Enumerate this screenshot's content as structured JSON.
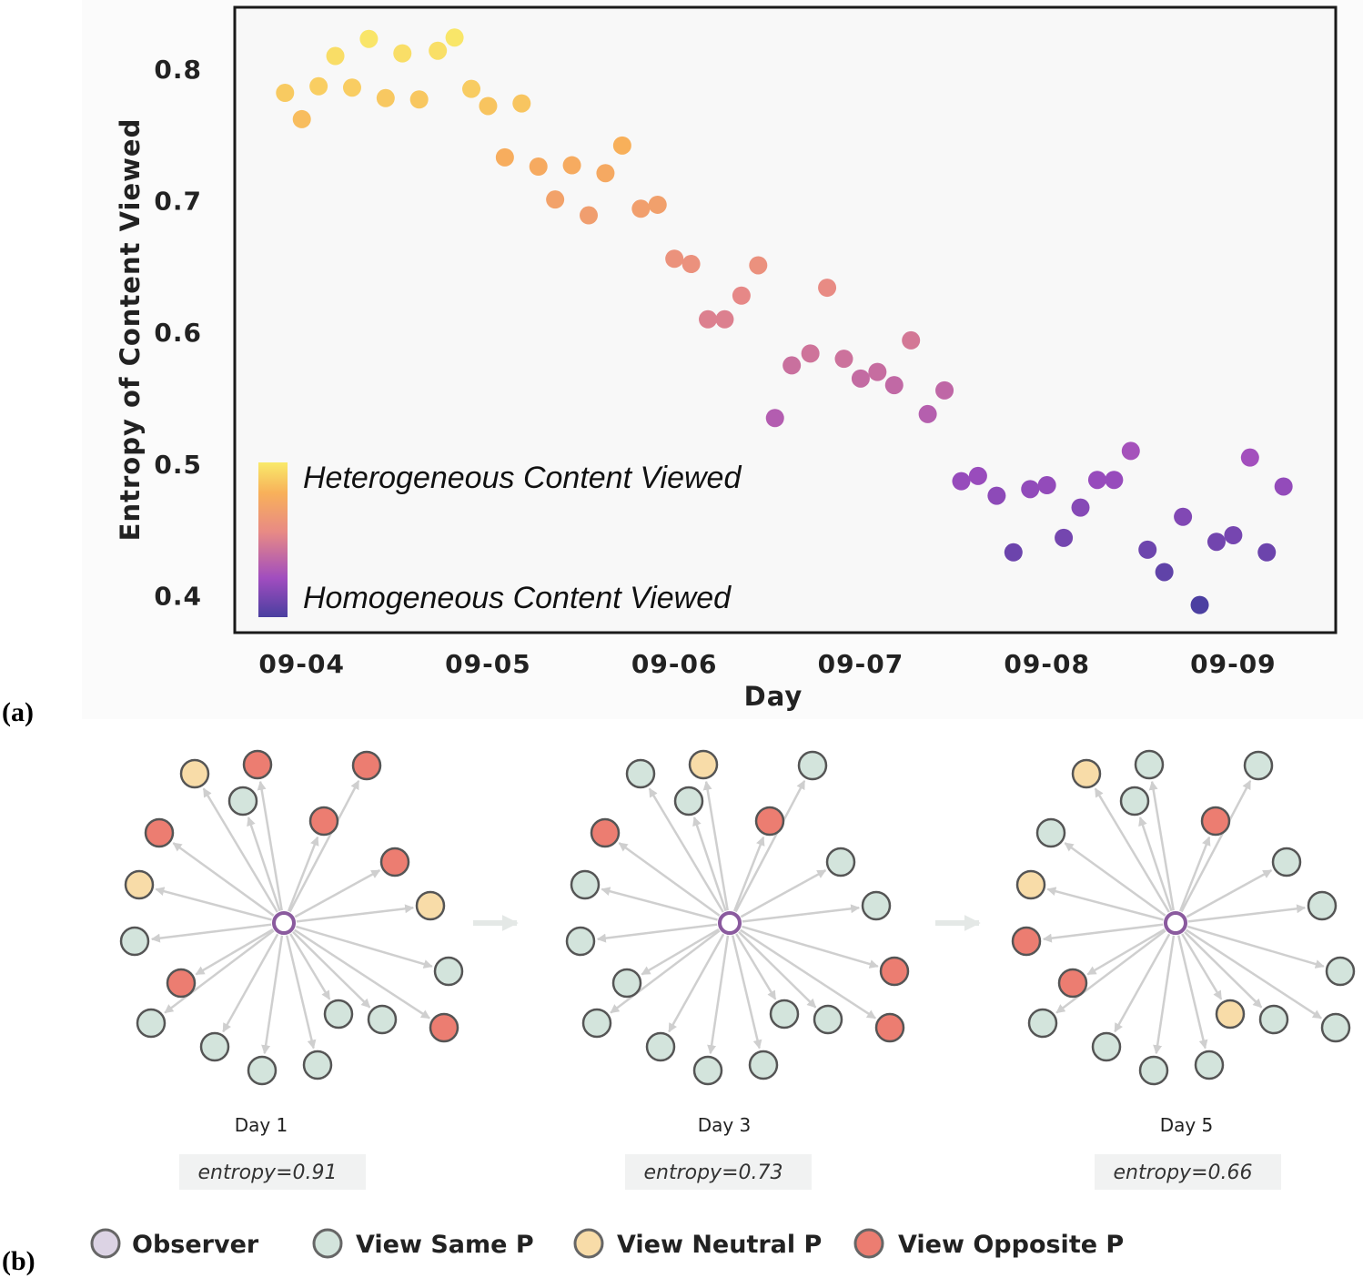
{
  "chart_data": {
    "type": "scatter",
    "title": "",
    "xlabel": "Day",
    "ylabel": "Entropy of Content Viewed",
    "x_ticks": [
      "09-04",
      "09-05",
      "09-06",
      "09-07",
      "09-08",
      "09-09"
    ],
    "xlim": [
      -0.36,
      5.55
    ],
    "ylim": [
      0.372,
      0.847
    ],
    "y_ticks": [
      0.4,
      0.5,
      0.6,
      0.7,
      0.8
    ],
    "y_tick_labels": [
      "0.4",
      "0.5",
      "0.6",
      "0.7",
      "0.8"
    ],
    "color_scale": "plasma-like (purple = low entropy, yellow = high entropy)",
    "colorbar": {
      "top_label": "Heterogeneous Content Viewed",
      "bottom_label": "Homogeneous Content Viewed",
      "placement": "lower-left"
    },
    "points": [
      {
        "x": -0.09,
        "y": 0.782
      },
      {
        "x": 0.0,
        "y": 0.762
      },
      {
        "x": 0.09,
        "y": 0.787
      },
      {
        "x": 0.18,
        "y": 0.81
      },
      {
        "x": 0.27,
        "y": 0.786
      },
      {
        "x": 0.36,
        "y": 0.823
      },
      {
        "x": 0.45,
        "y": 0.778
      },
      {
        "x": 0.54,
        "y": 0.812
      },
      {
        "x": 0.63,
        "y": 0.777
      },
      {
        "x": 0.73,
        "y": 0.814
      },
      {
        "x": 0.82,
        "y": 0.824
      },
      {
        "x": 0.91,
        "y": 0.785
      },
      {
        "x": 1.0,
        "y": 0.772
      },
      {
        "x": 1.09,
        "y": 0.733
      },
      {
        "x": 1.18,
        "y": 0.774
      },
      {
        "x": 1.27,
        "y": 0.726
      },
      {
        "x": 1.36,
        "y": 0.701
      },
      {
        "x": 1.45,
        "y": 0.727
      },
      {
        "x": 1.54,
        "y": 0.689
      },
      {
        "x": 1.63,
        "y": 0.721
      },
      {
        "x": 1.72,
        "y": 0.742
      },
      {
        "x": 1.82,
        "y": 0.694
      },
      {
        "x": 1.91,
        "y": 0.697
      },
      {
        "x": 2.0,
        "y": 0.656
      },
      {
        "x": 2.09,
        "y": 0.652
      },
      {
        "x": 2.18,
        "y": 0.61
      },
      {
        "x": 2.27,
        "y": 0.61
      },
      {
        "x": 2.36,
        "y": 0.628
      },
      {
        "x": 2.45,
        "y": 0.651
      },
      {
        "x": 2.54,
        "y": 0.535
      },
      {
        "x": 2.63,
        "y": 0.575
      },
      {
        "x": 2.73,
        "y": 0.584
      },
      {
        "x": 2.82,
        "y": 0.634
      },
      {
        "x": 2.91,
        "y": 0.58
      },
      {
        "x": 3.0,
        "y": 0.565
      },
      {
        "x": 3.09,
        "y": 0.57
      },
      {
        "x": 3.18,
        "y": 0.56
      },
      {
        "x": 3.27,
        "y": 0.594
      },
      {
        "x": 3.36,
        "y": 0.538
      },
      {
        "x": 3.45,
        "y": 0.556
      },
      {
        "x": 3.54,
        "y": 0.487
      },
      {
        "x": 3.63,
        "y": 0.491
      },
      {
        "x": 3.73,
        "y": 0.476
      },
      {
        "x": 3.82,
        "y": 0.433
      },
      {
        "x": 3.91,
        "y": 0.481
      },
      {
        "x": 4.0,
        "y": 0.484
      },
      {
        "x": 4.09,
        "y": 0.444
      },
      {
        "x": 4.18,
        "y": 0.467
      },
      {
        "x": 4.27,
        "y": 0.488
      },
      {
        "x": 4.36,
        "y": 0.488
      },
      {
        "x": 4.45,
        "y": 0.51
      },
      {
        "x": 4.54,
        "y": 0.435
      },
      {
        "x": 4.63,
        "y": 0.418
      },
      {
        "x": 4.73,
        "y": 0.46
      },
      {
        "x": 4.82,
        "y": 0.393
      },
      {
        "x": 4.91,
        "y": 0.441
      },
      {
        "x": 5.0,
        "y": 0.446
      },
      {
        "x": 5.09,
        "y": 0.505
      },
      {
        "x": 5.18,
        "y": 0.433
      },
      {
        "x": 5.27,
        "y": 0.483
      }
    ]
  },
  "panel_labels": {
    "a": "(a)",
    "b": "(b)"
  },
  "networks": [
    {
      "day_label": "Day 1",
      "entropy_label": "entropy=0.91",
      "nodes": [
        "neutral",
        "opposite",
        "same",
        "opposite",
        "opposite",
        "opposite",
        "neutral",
        "opposite",
        "neutral",
        "same",
        "opposite",
        "same",
        "same",
        "same",
        "same",
        "same",
        "same",
        "same",
        "opposite"
      ]
    },
    {
      "day_label": "Day 3",
      "entropy_label": "entropy=0.73",
      "nodes": [
        "same",
        "neutral",
        "same",
        "same",
        "opposite",
        "opposite",
        "same",
        "same",
        "same",
        "same",
        "same",
        "opposite",
        "same",
        "same",
        "same",
        "same",
        "same",
        "same",
        "opposite"
      ]
    },
    {
      "day_label": "Day 5",
      "entropy_label": "entropy=0.66",
      "nodes": [
        "neutral",
        "same",
        "same",
        "same",
        "opposite",
        "same",
        "neutral",
        "same",
        "same",
        "opposite",
        "opposite",
        "same",
        "same",
        "same",
        "same",
        "same",
        "neutral",
        "same",
        "same"
      ]
    }
  ],
  "network_legend": [
    {
      "key": "observer",
      "label": "Observer",
      "color": "#dcd3e4"
    },
    {
      "key": "same",
      "label": "View Same P",
      "color": "#d3e4dc"
    },
    {
      "key": "neutral",
      "label": "View Neutral P",
      "color": "#f8dca8"
    },
    {
      "key": "opposite",
      "label": "View Opposite P",
      "color": "#ec7d71"
    }
  ],
  "colors": {
    "same": "#d3e4dc",
    "neutral": "#f8dca8",
    "opposite": "#ec7d71",
    "observer_ring": "#8a5a9e",
    "edge": "#cfcfcf",
    "plot_bg": "#f8f8f8",
    "entropy_box": "#f1f2f2"
  }
}
